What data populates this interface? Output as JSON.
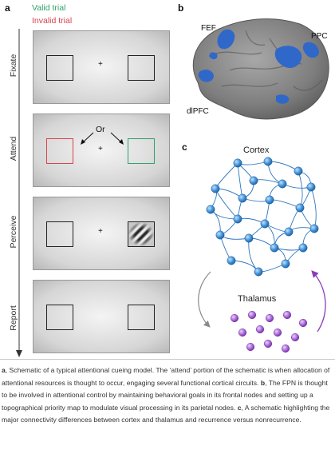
{
  "panels": {
    "a": "a",
    "b": "b",
    "c": "c"
  },
  "legend": {
    "valid": "Valid trial",
    "invalid": "Invalid trial"
  },
  "stages": [
    "Fixate",
    "Attend",
    "Perceive",
    "Report"
  ],
  "fixation": "+",
  "or_label": "Or",
  "brain_labels": {
    "fef": "FEF",
    "ppc": "PPC",
    "dlpfc": "dlPFC"
  },
  "network": {
    "cortex": "Cortex",
    "thalamus": "Thalamus"
  },
  "colors": {
    "valid": "#2fa36a",
    "invalid": "#d9434f",
    "node": "#3d8fd6",
    "thalamus_node": "#9b59c9",
    "region": "#2f68c9"
  },
  "caption": {
    "a_letter": "a",
    "a_text": ", Schematic of a typical attentional cueing model. The ‘attend’ portion of the schematic is when allocation of attentional resources is thought to occur, engaging several functional cortical circuits. ",
    "b_letter": "b",
    "b_text": ", The FPN is thought to be involved in attentional control by maintaining behavioral goals in its frontal nodes and setting up a topographical priority map to modulate visual processing in its parietal nodes. ",
    "c_letter": "c",
    "c_text": ", A schematic highlighting the major connectivity differences between cortex and thalamus and recurrence versus nonrecurrence."
  }
}
